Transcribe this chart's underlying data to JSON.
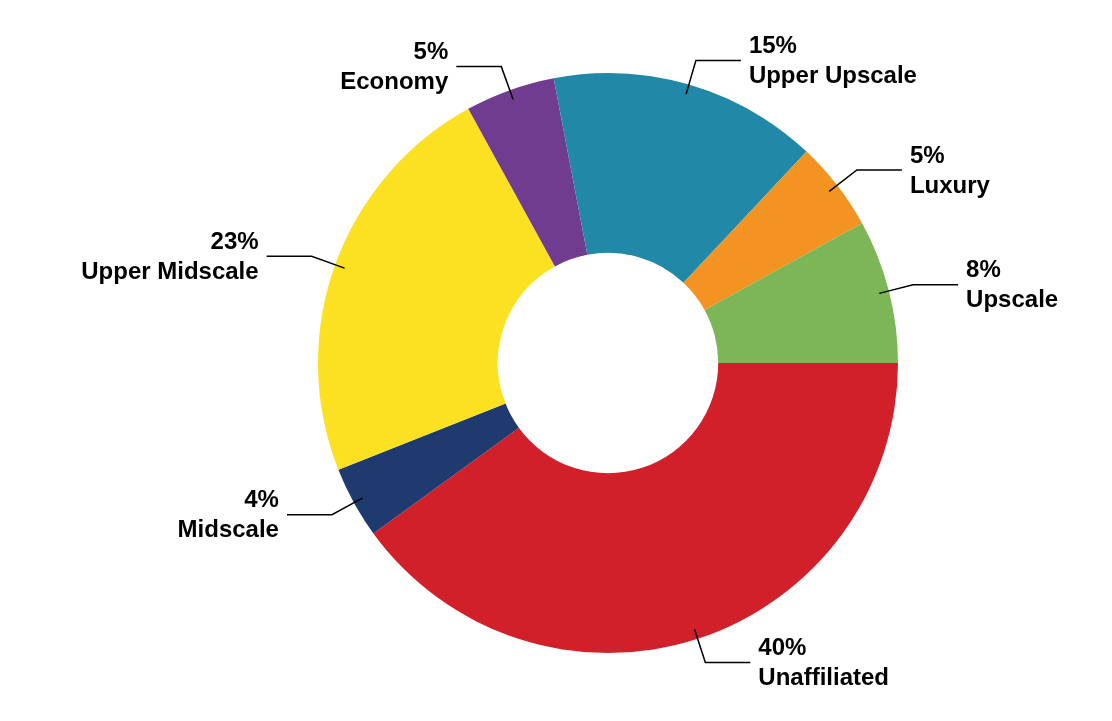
{
  "chart_data": {
    "type": "donut",
    "categories": [
      "Unaffiliated",
      "Midscale",
      "Upper Midscale",
      "Economy",
      "Upper Upscale",
      "Luxury",
      "Upscale"
    ],
    "values": [
      40,
      4,
      23,
      5,
      15,
      5,
      8
    ],
    "colors": [
      "#d2202a",
      "#1f3a6e",
      "#fbe122",
      "#6f3c8f",
      "#2188a7",
      "#f39322",
      "#7db657"
    ],
    "value_labels": [
      "40%",
      "4%",
      "23%",
      "5%",
      "15%",
      "5%",
      "8%"
    ],
    "legend": false
  }
}
